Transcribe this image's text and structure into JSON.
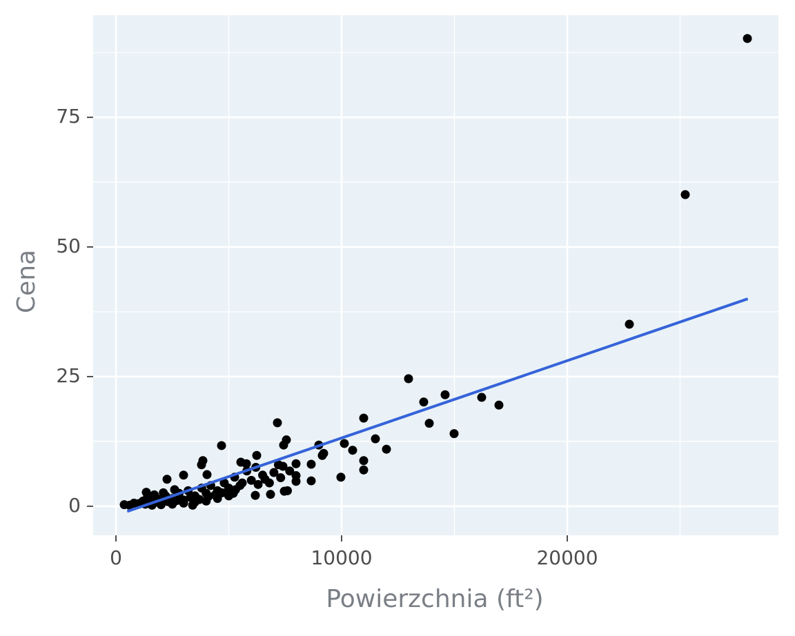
{
  "chart_data": {
    "type": "scatter",
    "xlabel": "Powierzchnia (ft²)",
    "ylabel": "Cena",
    "color": "#000000",
    "xlim": [
      -1009,
      29358
    ],
    "ylim": [
      -5.6,
      94.7
    ],
    "xticks": [
      0,
      10000,
      20000
    ],
    "yticks": [
      0,
      25,
      50,
      75
    ],
    "xminorticks": [
      5000,
      15000,
      25000
    ],
    "yminorticks": [
      12.5,
      37.5,
      62.5,
      87.5
    ],
    "grid": true,
    "x": [
      27982,
      25229,
      22752,
      12966,
      13639,
      13884,
      14587,
      14985,
      16208,
      16972,
      10979,
      11498,
      11988,
      10122,
      10489,
      10979,
      10979,
      9969,
      8991,
      9205,
      9144,
      8654,
      8654,
      7982,
      7982,
      7982,
      7156,
      7554,
      7431,
      7401,
      7462,
      4679,
      3853,
      3792,
      6239,
      5535,
      5780,
      6606,
      6177,
      6850,
      2997,
      2263,
      5596,
      5260,
      4037,
      1346,
      367,
      1000,
      1200,
      1500,
      1800,
      2000,
      2200,
      2500,
      2800,
      3000,
      3200,
      3500,
      3800,
      4000,
      4200,
      4500,
      4800,
      5000,
      5200,
      5500,
      6000,
      6500,
      7000,
      7200,
      6200,
      5800,
      2000,
      2500,
      3000,
      3500,
      4000,
      4500,
      5000,
      600,
      800,
      1300,
      1600,
      1900,
      2300,
      2700,
      3300,
      3700,
      4100,
      4400,
      4700,
      5300,
      6300,
      6800,
      7300,
      7700,
      7600,
      3400,
      2100,
      2600,
      1400,
      1700
    ],
    "values": [
      90.2,
      60.1,
      35.1,
      24.6,
      20.1,
      16.0,
      21.5,
      14.0,
      21.0,
      19.5,
      17.0,
      13.0,
      11.0,
      12.1,
      10.8,
      8.8,
      7.0,
      5.6,
      11.8,
      10.2,
      9.8,
      8.1,
      4.9,
      8.2,
      5.9,
      4.8,
      16.1,
      12.8,
      11.8,
      7.7,
      2.9,
      11.7,
      8.8,
      8.0,
      9.8,
      8.5,
      8.2,
      5.2,
      2.1,
      2.3,
      6.0,
      5.2,
      4.5,
      5.6,
      6.1,
      2.7,
      0.3,
      0.5,
      1.0,
      0.8,
      1.5,
      1.0,
      2.0,
      1.5,
      2.5,
      1.2,
      3.0,
      2.0,
      3.5,
      2.5,
      4.0,
      3.0,
      4.5,
      3.5,
      2.5,
      4.0,
      5.0,
      6.0,
      6.5,
      8.0,
      7.5,
      6.8,
      0.3,
      0.4,
      0.6,
      0.8,
      1.0,
      1.5,
      2.0,
      0.2,
      0.6,
      0.4,
      0.2,
      0.7,
      0.9,
      1.1,
      1.7,
      1.3,
      1.9,
      2.2,
      2.6,
      3.2,
      4.2,
      4.5,
      5.5,
      6.8,
      3.0,
      0.2,
      2.6,
      3.2,
      1.8,
      2.2
    ],
    "trend": {
      "x": [
        500,
        28000
      ],
      "values": [
        -1.0,
        40.0
      ],
      "color": "#3563d9"
    }
  }
}
